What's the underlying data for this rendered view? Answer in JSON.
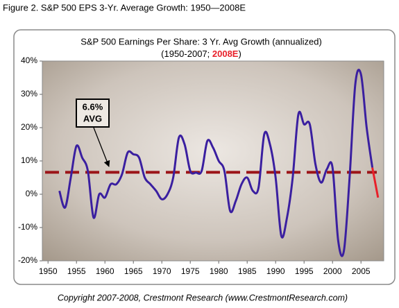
{
  "figure_title": "Figure 2.  S&P 500 EPS 3-Yr. Average Growth: 1950—2008E",
  "footer": "Copyright 2007-2008, Crestmont Research (www.CrestmontResearch.com)",
  "chart_data": {
    "type": "line",
    "title": "S&P 500 Earnings Per Share: 3 Yr. Avg Growth (annualized)",
    "subtitle": [
      "(1950-2007; ",
      "2008E",
      ")"
    ],
    "x": [
      1952,
      1953,
      1954,
      1955,
      1956,
      1957,
      1958,
      1959,
      1960,
      1961,
      1962,
      1963,
      1964,
      1965,
      1966,
      1967,
      1968,
      1969,
      1970,
      1971,
      1972,
      1973,
      1974,
      1975,
      1976,
      1977,
      1978,
      1979,
      1980,
      1981,
      1982,
      1983,
      1984,
      1985,
      1986,
      1987,
      1988,
      1989,
      1990,
      1991,
      1992,
      1993,
      1994,
      1995,
      1996,
      1997,
      1998,
      1999,
      2000,
      2001,
      2002,
      2003,
      2004,
      2005,
      2006,
      2007,
      2008
    ],
    "series": [
      {
        "color": "#3a1fa0",
        "values": [
          1,
          -4,
          5,
          14.5,
          11,
          7,
          -7,
          0,
          -1,
          3,
          3,
          6,
          12.5,
          12,
          11,
          5,
          3,
          1,
          -1.5,
          0,
          5,
          17,
          15,
          7,
          6.5,
          7,
          16,
          14,
          10,
          7,
          -5,
          -2,
          3,
          5,
          1,
          2,
          18,
          15,
          5,
          -12.5,
          -7,
          5,
          24,
          21,
          21,
          9,
          3.5,
          7.5,
          8,
          -14,
          -17,
          5,
          33,
          36,
          20,
          8,
          null
        ]
      },
      {
        "name": "2008E",
        "color": "#e8202a",
        "values": [
          null,
          null,
          null,
          null,
          null,
          null,
          null,
          null,
          null,
          null,
          null,
          null,
          null,
          null,
          null,
          null,
          null,
          null,
          null,
          null,
          null,
          null,
          null,
          null,
          null,
          null,
          null,
          null,
          null,
          null,
          null,
          null,
          null,
          null,
          null,
          null,
          null,
          null,
          null,
          null,
          null,
          null,
          null,
          null,
          null,
          null,
          null,
          null,
          null,
          null,
          null,
          null,
          null,
          null,
          null,
          8,
          -1
        ]
      }
    ],
    "avg_line": {
      "value": 6.6,
      "label": [
        "6.6%",
        "AVG"
      ],
      "color": "#9b1418"
    },
    "xlim": [
      1949,
      2009
    ],
    "xticks": [
      1950,
      1955,
      1960,
      1965,
      1970,
      1975,
      1980,
      1985,
      1990,
      1995,
      2000,
      2005
    ],
    "ylim": [
      -20,
      40
    ],
    "yticks": [
      {
        "value": -20,
        "label": "-20%"
      },
      {
        "value": -10,
        "label": "-10%"
      },
      {
        "value": 0,
        "label": "0%"
      },
      {
        "value": 10,
        "label": "10%"
      },
      {
        "value": 20,
        "label": "20%"
      },
      {
        "value": 30,
        "label": "30%"
      },
      {
        "value": 40,
        "label": "40%"
      }
    ]
  }
}
